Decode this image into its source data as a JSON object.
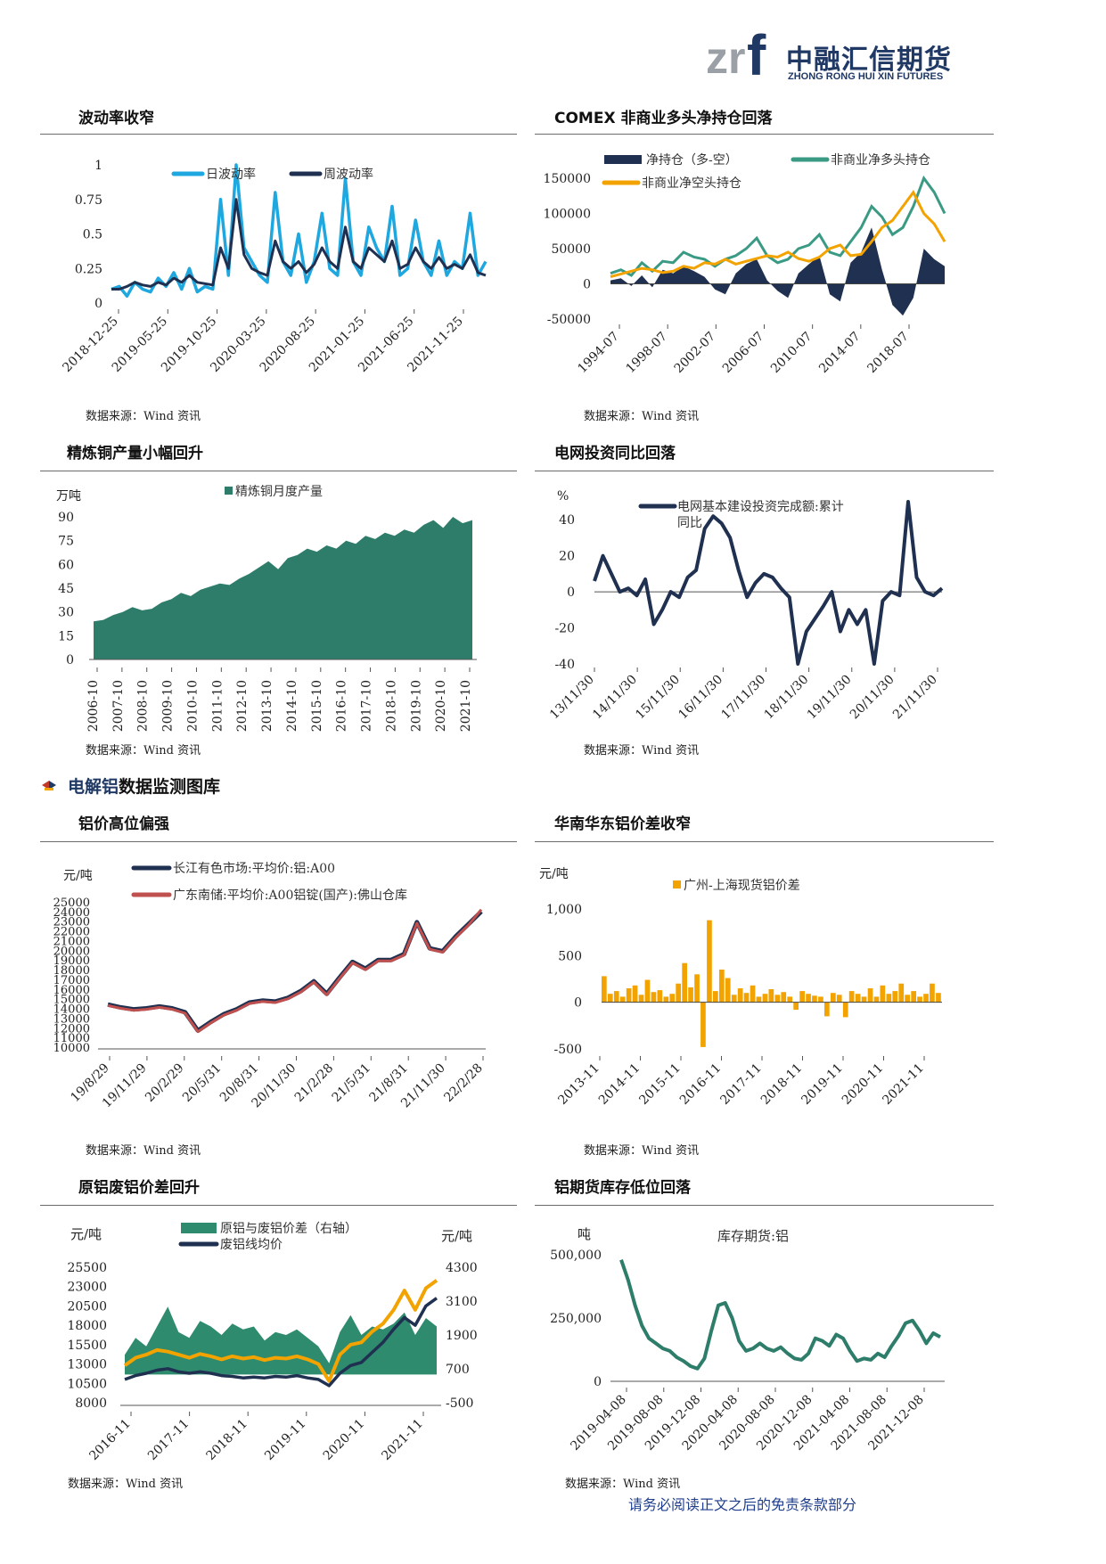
{
  "header": {
    "logo_mark": "zrf",
    "logo_cn": "中融汇信期货",
    "logo_en": "ZHONG RONG HUI XIN FUTURES",
    "brand_color": "#1f3864",
    "accent_color": "#9aa0a6"
  },
  "section": {
    "prefix": "电解铝",
    "rest": "数据监测图库"
  },
  "footer": {
    "text": "请务必阅读正文之后的免责条款部分"
  },
  "panels": [
    {
      "title": "波动率收窄",
      "source": "数据来源：Wind 资讯"
    },
    {
      "title": "COMEX 非商业多头净持仓回落",
      "source": "数据来源：Wind 资讯"
    },
    {
      "title": "精炼铜产量小幅回升",
      "source": "数据来源：Wind 资讯"
    },
    {
      "title": "电网投资同比回落",
      "source": "数据来源：Wind 资讯"
    },
    {
      "title": "铝价高位偏强",
      "source": "数据来源：Wind 资讯"
    },
    {
      "title": "华南华东铝价差收窄",
      "source": "数据来源：Wind 资讯"
    },
    {
      "title": "原铝废铝价差回升",
      "source": "数据来源：Wind 资讯"
    },
    {
      "title": "铝期货库存低位回落",
      "source": "数据来源：Wind 资讯"
    }
  ],
  "chart_data": [
    {
      "type": "line",
      "y_ticks": [
        "0",
        "0.25",
        "0.5",
        "0.75",
        "1"
      ],
      "ylim": [
        0,
        1
      ],
      "x_ticks": [
        "2018-12-25",
        "2019-05-25",
        "2019-10-25",
        "2020-03-25",
        "2020-08-25",
        "2021-01-25",
        "2021-06-25",
        "2021-11-25"
      ],
      "series": [
        {
          "name": "日波动率",
          "color": "#1fa8e0",
          "values": [
            0.1,
            0.12,
            0.05,
            0.15,
            0.1,
            0.08,
            0.18,
            0.12,
            0.22,
            0.1,
            0.25,
            0.08,
            0.12,
            0.1,
            0.75,
            0.2,
            1.0,
            0.4,
            0.3,
            0.2,
            0.15,
            0.8,
            0.3,
            0.2,
            0.5,
            0.15,
            0.3,
            0.65,
            0.25,
            0.2,
            0.9,
            0.3,
            0.2,
            0.55,
            0.4,
            0.3,
            0.7,
            0.2,
            0.25,
            0.6,
            0.3,
            0.2,
            0.45,
            0.2,
            0.3,
            0.25,
            0.65,
            0.2,
            0.3
          ]
        },
        {
          "name": "周波动率",
          "color": "#1f3050",
          "values": [
            0.1,
            0.1,
            0.12,
            0.15,
            0.13,
            0.12,
            0.15,
            0.13,
            0.18,
            0.15,
            0.2,
            0.15,
            0.14,
            0.13,
            0.4,
            0.25,
            0.75,
            0.35,
            0.25,
            0.22,
            0.2,
            0.45,
            0.3,
            0.25,
            0.3,
            0.22,
            0.28,
            0.4,
            0.3,
            0.25,
            0.55,
            0.3,
            0.25,
            0.4,
            0.35,
            0.3,
            0.45,
            0.25,
            0.28,
            0.4,
            0.3,
            0.25,
            0.33,
            0.25,
            0.28,
            0.25,
            0.35,
            0.22,
            0.2
          ]
        }
      ]
    },
    {
      "type": "area",
      "y_ticks": [
        "-50000",
        "0",
        "50000",
        "100000",
        "150000"
      ],
      "ylim": [
        -50000,
        150000
      ],
      "x_ticks": [
        "1994-07",
        "1998-07",
        "2002-07",
        "2006-07",
        "2010-07",
        "2014-07",
        "2018-07"
      ],
      "series": [
        {
          "name": "净持仓（多-空）",
          "color": "#1f3050",
          "values": [
            5000,
            8000,
            -3000,
            12000,
            -5000,
            20000,
            15000,
            25000,
            18000,
            10000,
            -8000,
            -15000,
            15000,
            28000,
            35000,
            5000,
            -10000,
            -20000,
            15000,
            28000,
            40000,
            -15000,
            -25000,
            30000,
            45000,
            80000,
            20000,
            -30000,
            -45000,
            -20000,
            50000,
            35000,
            25000
          ]
        },
        {
          "name": "非商业净多头持仓",
          "color": "#3a9a84",
          "values": [
            15000,
            20000,
            12000,
            30000,
            18000,
            32000,
            30000,
            45000,
            38000,
            35000,
            25000,
            35000,
            40000,
            50000,
            65000,
            40000,
            30000,
            35000,
            50000,
            55000,
            70000,
            45000,
            40000,
            60000,
            80000,
            110000,
            95000,
            70000,
            80000,
            110000,
            150000,
            130000,
            100000
          ]
        },
        {
          "name": "非商业净空头持仓",
          "color": "#f3a300",
          "values": [
            10000,
            14000,
            18000,
            22000,
            20000,
            16000,
            18000,
            25000,
            22000,
            30000,
            28000,
            35000,
            28000,
            32000,
            36000,
            40000,
            38000,
            45000,
            36000,
            32000,
            38000,
            50000,
            55000,
            40000,
            42000,
            60000,
            80000,
            90000,
            110000,
            130000,
            100000,
            85000,
            60000
          ]
        }
      ]
    },
    {
      "type": "area",
      "y_ticks": [
        "0",
        "15",
        "30",
        "45",
        "60",
        "75",
        "90"
      ],
      "ylim": [
        0,
        90
      ],
      "y_unit": "万吨",
      "x_ticks": [
        "2006-10",
        "2007-10",
        "2008-10",
        "2009-10",
        "2010-10",
        "2011-10",
        "2012-10",
        "2013-10",
        "2014-10",
        "2015-10",
        "2016-10",
        "2017-10",
        "2018-10",
        "2019-10",
        "2020-10",
        "2021-10"
      ],
      "series": [
        {
          "name": "精炼铜月度产量",
          "color": "#2e7d6b",
          "values": [
            24,
            25,
            28,
            30,
            33,
            31,
            32,
            36,
            38,
            42,
            40,
            44,
            46,
            48,
            47,
            51,
            54,
            58,
            62,
            57,
            64,
            66,
            70,
            68,
            72,
            70,
            75,
            73,
            78,
            76,
            80,
            78,
            82,
            80,
            85,
            88,
            83,
            90,
            86,
            88
          ]
        }
      ]
    },
    {
      "type": "line",
      "y_ticks": [
        "-40",
        "-20",
        "0",
        "20",
        "40"
      ],
      "ylim": [
        -40,
        50
      ],
      "y_unit": "%",
      "x_ticks": [
        "13/11/30",
        "14/11/30",
        "15/11/30",
        "16/11/30",
        "17/11/30",
        "18/11/30",
        "19/11/30",
        "20/11/30",
        "21/11/30"
      ],
      "series": [
        {
          "name": "电网基本建设投资完成额:累计同比",
          "color": "#1f3050",
          "values": [
            6,
            20,
            10,
            0,
            2,
            -2,
            7,
            -18,
            -10,
            0,
            -3,
            8,
            12,
            35,
            42,
            38,
            30,
            12,
            -3,
            5,
            10,
            8,
            2,
            -3,
            -40,
            -22,
            -15,
            -8,
            0,
            -22,
            -10,
            -18,
            -10,
            -40,
            -5,
            0,
            -2,
            50,
            8,
            0,
            -2,
            2
          ]
        }
      ]
    },
    {
      "type": "line",
      "y_ticks": [
        "10000",
        "11000",
        "12000",
        "13000",
        "14000",
        "15000",
        "16000",
        "17000",
        "18000",
        "19000",
        "20000",
        "21000",
        "22000",
        "23000",
        "24000",
        "25000"
      ],
      "ylim": [
        10000,
        25000
      ],
      "y_unit": "元/吨",
      "x_ticks": [
        "19/8/29",
        "19/11/29",
        "20/2/29",
        "20/5/31",
        "20/8/31",
        "20/11/30",
        "21/2/28",
        "21/5/31",
        "21/8/31",
        "21/11/30",
        "22/2/28"
      ],
      "series": [
        {
          "name": "长江有色市场:平均价:铝:A00",
          "color": "#1f3050",
          "values": [
            14400,
            14100,
            13900,
            14000,
            14200,
            14000,
            13600,
            11700,
            12600,
            13400,
            13900,
            14600,
            14800,
            14700,
            15100,
            15800,
            16800,
            15500,
            17200,
            18800,
            18100,
            19000,
            19000,
            19600,
            22900,
            20200,
            19900,
            21400,
            22700,
            24000
          ]
        },
        {
          "name": "广东南储:平均价:A00铝锭(国产):佛山仓库",
          "color": "#c0504d",
          "values": [
            14300,
            14000,
            13800,
            13900,
            14100,
            13900,
            13500,
            11600,
            12500,
            13300,
            13800,
            14500,
            14700,
            14600,
            15000,
            15700,
            16700,
            15400,
            17100,
            18700,
            18000,
            18900,
            18900,
            19500,
            22800,
            20100,
            19800,
            21300,
            22600,
            24200
          ]
        }
      ]
    },
    {
      "type": "bar",
      "y_ticks": [
        "-500",
        "0",
        "500",
        "1,000"
      ],
      "ylim": [
        -500,
        1000
      ],
      "y_unit": "元/吨",
      "x_ticks": [
        "2013-11",
        "2014-11",
        "2015-11",
        "2016-11",
        "2017-11",
        "2018-11",
        "2019-11",
        "2020-11",
        "2021-11"
      ],
      "series": [
        {
          "name": "广州-上海现货铝价差",
          "color": "#f3a300",
          "values": [
            280,
            90,
            120,
            60,
            150,
            180,
            80,
            240,
            110,
            130,
            60,
            90,
            200,
            420,
            160,
            300,
            -480,
            880,
            120,
            350,
            260,
            80,
            150,
            100,
            180,
            60,
            90,
            140,
            80,
            110,
            60,
            -80,
            120,
            90,
            70,
            60,
            -150,
            100,
            80,
            -160,
            120,
            90,
            60,
            150,
            60,
            180,
            90,
            120,
            200,
            80,
            120,
            60,
            90,
            200,
            100
          ]
        }
      ]
    },
    {
      "type": "area",
      "y_ticks_left": [
        "8000",
        "10500",
        "13000",
        "15500",
        "18000",
        "20500",
        "23000",
        "25500"
      ],
      "y_ticks_right": [
        "-500",
        "700",
        "1900",
        "3100",
        "4300"
      ],
      "ylim_left": [
        8000,
        25500
      ],
      "ylim_right": [
        -500,
        4300
      ],
      "y_unit_left": "元/吨",
      "y_unit_right": "元/吨",
      "x_ticks": [
        "2016-11",
        "2017-11",
        "2018-11",
        "2019-11",
        "2020-11",
        "2021-11"
      ],
      "series": [
        {
          "name": "原铝与废铝价差（右轴）",
          "color": "#2e8b6e",
          "values": [
            1200,
            1800,
            1500,
            2200,
            2900,
            2000,
            1800,
            2400,
            2200,
            1900,
            2300,
            2100,
            2200,
            1700,
            2000,
            1900,
            2100,
            1800,
            1500,
            900,
            2000,
            2600,
            1900,
            2200,
            2100,
            2300,
            2700,
            1900,
            2500,
            2200
          ]
        },
        {
          "name": "废铝线均价",
          "color": "#1f3050",
          "values": [
            11000,
            11500,
            11800,
            12200,
            12400,
            12000,
            11800,
            12000,
            11800,
            11500,
            11400,
            11200,
            11300,
            11200,
            11400,
            11300,
            11500,
            11200,
            11000,
            10200,
            11800,
            12800,
            13200,
            14500,
            15800,
            17500,
            19000,
            18000,
            20500,
            21500
          ]
        },
        {
          "name": "原铝",
          "color": "#f3a300",
          "values": [
            12800,
            13800,
            14200,
            14800,
            14600,
            14200,
            13800,
            14300,
            14000,
            13600,
            14000,
            13700,
            13900,
            13500,
            13800,
            13700,
            14000,
            13600,
            13000,
            10800,
            14200,
            15500,
            15800,
            17200,
            18200,
            20000,
            22500,
            20000,
            22800,
            23800
          ]
        }
      ]
    },
    {
      "type": "line",
      "y_ticks": [
        "0",
        "250,000",
        "500,000"
      ],
      "ylim": [
        0,
        500000
      ],
      "y_unit": "吨",
      "x_ticks": [
        "2019-04-08",
        "2019-08-08",
        "2019-12-08",
        "2020-04-08",
        "2020-08-08",
        "2020-12-08",
        "2021-04-08",
        "2021-08-08",
        "2021-12-08"
      ],
      "series": [
        {
          "name": "库存期货:铝",
          "color": "#2e7d6b",
          "values": [
            480000,
            400000,
            300000,
            220000,
            170000,
            150000,
            130000,
            120000,
            95000,
            80000,
            60000,
            50000,
            90000,
            200000,
            300000,
            310000,
            250000,
            160000,
            120000,
            130000,
            150000,
            130000,
            120000,
            135000,
            110000,
            90000,
            85000,
            110000,
            170000,
            160000,
            140000,
            185000,
            170000,
            120000,
            80000,
            90000,
            85000,
            110000,
            95000,
            140000,
            180000,
            230000,
            240000,
            200000,
            150000,
            190000,
            175000
          ]
        }
      ]
    }
  ]
}
